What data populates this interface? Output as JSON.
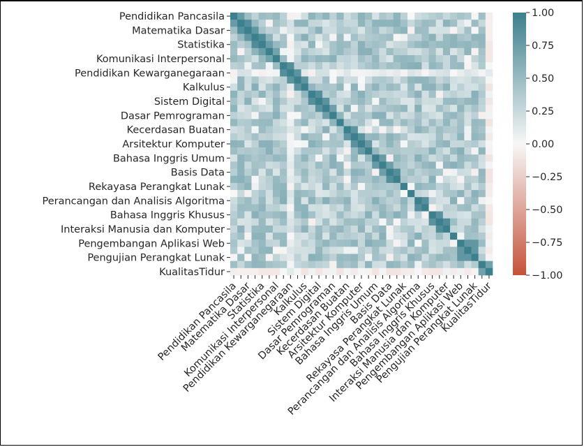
{
  "chart_data": {
    "type": "heatmap",
    "title": "",
    "xlabel": "",
    "ylabel": "",
    "variables": [
      "Pendidikan Pancasila",
      "",
      "Matematika Dasar",
      "",
      "Statistika",
      "",
      "Komunikasi Interpersonal",
      "",
      "Pendidikan Kewarganegaraan",
      "",
      "Kalkulus",
      "",
      "Sistem Digital",
      "",
      "Dasar Pemrograman",
      "",
      "Kecerdasan Buatan",
      "",
      "Arsitektur Komputer",
      "",
      "Bahasa Inggris Umum",
      "",
      "Basis Data",
      "",
      "Rekayasa Perangkat Lunak",
      "",
      "Perancangan dan Analisis Algoritma",
      "",
      "Bahasa Inggris Khusus",
      "",
      "Interaksi Manusia dan Komputer",
      "",
      "Pengembangan Aplikasi Web",
      "",
      "Pengujian Perangkat Lunak",
      "",
      "KualitasTidur"
    ],
    "tick_labels": [
      "Pendidikan Pancasila",
      "Matematika Dasar",
      "Statistika",
      "Komunikasi Interpersonal",
      "Pendidikan Kewarganegaraan",
      "Kalkulus",
      "Sistem Digital",
      "Dasar Pemrograman",
      "Kecerdasan Buatan",
      "Arsitektur Komputer",
      "Bahasa Inggris Umum",
      "Basis Data",
      "Rekayasa Perangkat Lunak",
      "Perancangan dan Analisis Algoritma",
      "Bahasa Inggris Khusus",
      "Interaksi Manusia dan Komputer",
      "Pengembangan Aplikasi Web",
      "Pengujian Perangkat Lunak",
      "KualitasTidur"
    ],
    "diagonal_value": 1.0,
    "colorbar": {
      "min": -1.0,
      "max": 1.0,
      "ticks": [
        "1.00",
        "0.75",
        "0.50",
        "0.25",
        "0.00",
        "−0.25",
        "−0.50",
        "−0.75",
        "−1.00"
      ],
      "colormap": [
        "#c5523a",
        "#f7f7f7",
        "#3c7f8d"
      ]
    },
    "overall_pattern": "mostly weak-to-moderate positive correlations (about 0.2–0.6) among course grades; KualitasTidur row/column near zero to slightly negative",
    "annotations": "none"
  }
}
